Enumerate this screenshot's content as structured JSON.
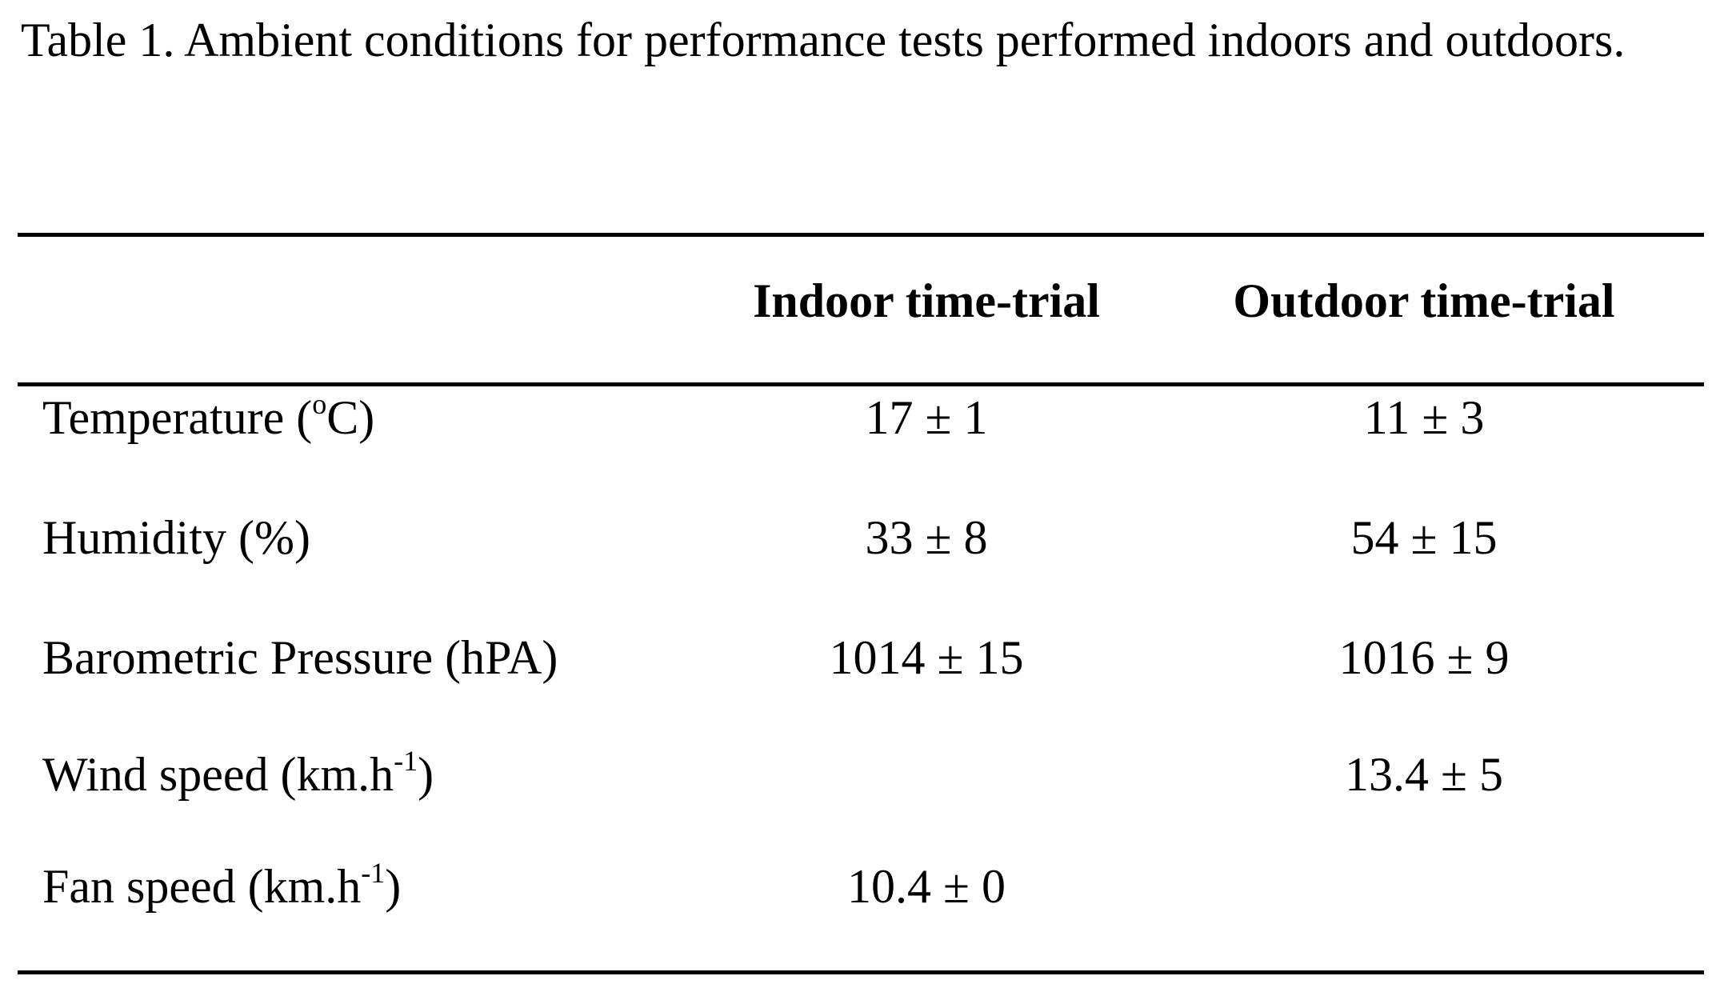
{
  "caption": "Table 1. Ambient conditions for performance tests performed indoors and outdoors.",
  "columns": [
    "",
    "Indoor time-trial",
    "Outdoor time-trial"
  ],
  "rows": [
    {
      "label_pre": "Temperature (",
      "label_sup": "o",
      "label_post": "C)",
      "indoor": "17 ± 1",
      "outdoor": "11 ± 3"
    },
    {
      "label_pre": "Humidity (%)",
      "label_sup": "",
      "label_post": "",
      "indoor": "33 ± 8",
      "outdoor": "54 ± 15"
    },
    {
      "label_pre": "Barometric Pressure (hPA)",
      "label_sup": "",
      "label_post": "",
      "indoor": "1014 ± 15",
      "outdoor": "1016 ± 9"
    },
    {
      "label_pre": "Wind speed (km.h",
      "label_sup": "-1",
      "label_post": ")",
      "indoor": "",
      "outdoor": "13.4 ± 5"
    },
    {
      "label_pre": "Fan speed (km.h",
      "label_sup": "-1",
      "label_post": ")",
      "indoor": "10.4 ± 0",
      "outdoor": ""
    }
  ]
}
